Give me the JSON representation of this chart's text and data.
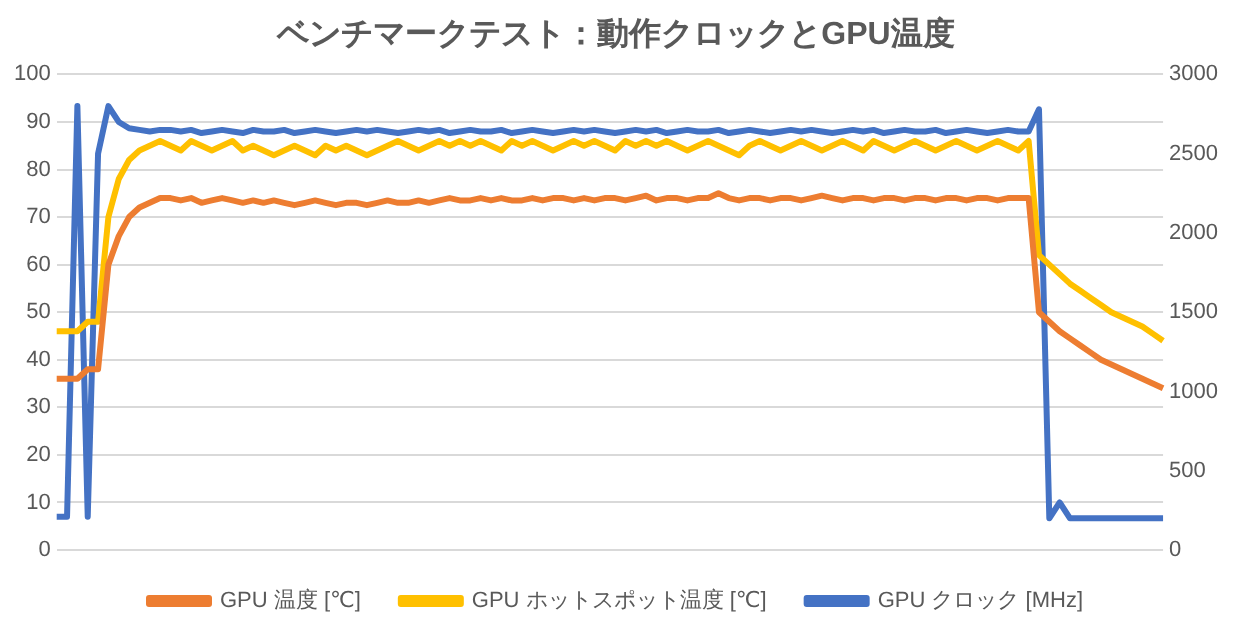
{
  "chart_data": {
    "type": "line",
    "title": "ベンチマークテスト：動作クロックとGPU温度",
    "categories": [
      null,
      null,
      null,
      null,
      null,
      null,
      null,
      null,
      null,
      null,
      null,
      null,
      null,
      null,
      null,
      null,
      null,
      null,
      null,
      null,
      null,
      null,
      null,
      null,
      null,
      null,
      null,
      null,
      null,
      null,
      null,
      null,
      null,
      null,
      null,
      null,
      null,
      null,
      null,
      null,
      null,
      null,
      null,
      null,
      null,
      null,
      null,
      null,
      null,
      null,
      null,
      null,
      null,
      null,
      null,
      null,
      null,
      null,
      null,
      null,
      null,
      null,
      null,
      null,
      null,
      null,
      null,
      null,
      null,
      null,
      null,
      null,
      null,
      null,
      null,
      null,
      null,
      null,
      null,
      null,
      null,
      null,
      null,
      null,
      null,
      null,
      null,
      null,
      null,
      null,
      null,
      null,
      null,
      null,
      null,
      null,
      null,
      null,
      null,
      null,
      null,
      null,
      null,
      null,
      null,
      null,
      null,
      null
    ],
    "ylim": [
      0,
      100
    ],
    "yticks": [
      0,
      10,
      20,
      30,
      40,
      50,
      60,
      70,
      80,
      90,
      100
    ],
    "y2lim": [
      0,
      3000
    ],
    "y2ticks": [
      0,
      500,
      1000,
      1500,
      2000,
      2500,
      3000
    ],
    "grid": "y",
    "legend": "bottom",
    "marker": "none",
    "line_style": "solid",
    "series": [
      {
        "name": "GPU 温度 [℃]",
        "color": "#ed7d31",
        "values": [
          36,
          36,
          36,
          38,
          38,
          60,
          66,
          70,
          72,
          73,
          74,
          74,
          73.5,
          74,
          73,
          73.5,
          74,
          73.5,
          73,
          73.5,
          73,
          73.5,
          73,
          72.5,
          73,
          73.5,
          73,
          72.5,
          73,
          73,
          72.5,
          73,
          73.5,
          73,
          73,
          73.5,
          73,
          73.5,
          74,
          73.5,
          73.5,
          74,
          73.5,
          74,
          73.5,
          73.5,
          74,
          73.5,
          74,
          74,
          73.5,
          74,
          73.5,
          74,
          74,
          73.5,
          74,
          74.5,
          73.5,
          74,
          74,
          73.5,
          74,
          74,
          75,
          74,
          73.5,
          74,
          74,
          73.5,
          74,
          74,
          73.5,
          74,
          74.5,
          74,
          73.5,
          74,
          74,
          73.5,
          74,
          74,
          73.5,
          74,
          74,
          73.5,
          74,
          74,
          73.5,
          74,
          74,
          73.5,
          74,
          74,
          74,
          50,
          48,
          46,
          44.5,
          43,
          41.5,
          40,
          39,
          38,
          37,
          36,
          35,
          34
        ]
      },
      {
        "name": "GPU ホットスポット温度 [℃]",
        "color": "#ffc000",
        "values": [
          46,
          46,
          46,
          48,
          48,
          70,
          78,
          82,
          84,
          85,
          86,
          85,
          84,
          86,
          85,
          84,
          85,
          86,
          84,
          85,
          84,
          83,
          84,
          85,
          84,
          83,
          85,
          84,
          85,
          84,
          83,
          84,
          85,
          86,
          85,
          84,
          85,
          86,
          85,
          86,
          85,
          86,
          85,
          84,
          86,
          85,
          86,
          85,
          84,
          85,
          86,
          85,
          86,
          85,
          84,
          86,
          85,
          86,
          85,
          86,
          85,
          84,
          85,
          86,
          85,
          84,
          83,
          85,
          86,
          85,
          84,
          85,
          86,
          85,
          84,
          85,
          86,
          85,
          84,
          86,
          85,
          84,
          85,
          86,
          85,
          84,
          85,
          86,
          85,
          84,
          85,
          86,
          85,
          84,
          86,
          62,
          60,
          58,
          56,
          54.5,
          53,
          51.5,
          50,
          49,
          48,
          47,
          45.5,
          44
        ]
      },
      {
        "name": "GPU クロック [MHz]",
        "color": "#4472c4",
        "axis": "y2",
        "values": [
          210,
          210,
          2800,
          210,
          2500,
          2800,
          2700,
          2660,
          2650,
          2640,
          2650,
          2650,
          2640,
          2650,
          2630,
          2640,
          2650,
          2640,
          2630,
          2650,
          2640,
          2640,
          2650,
          2630,
          2640,
          2650,
          2640,
          2630,
          2640,
          2650,
          2640,
          2650,
          2640,
          2630,
          2640,
          2650,
          2640,
          2650,
          2630,
          2640,
          2650,
          2640,
          2640,
          2650,
          2630,
          2640,
          2650,
          2640,
          2630,
          2640,
          2650,
          2640,
          2650,
          2640,
          2630,
          2640,
          2650,
          2640,
          2650,
          2630,
          2640,
          2650,
          2640,
          2640,
          2650,
          2630,
          2640,
          2650,
          2640,
          2630,
          2640,
          2650,
          2640,
          2650,
          2640,
          2630,
          2640,
          2650,
          2640,
          2650,
          2630,
          2640,
          2650,
          2640,
          2640,
          2650,
          2630,
          2640,
          2650,
          2640,
          2630,
          2640,
          2650,
          2640,
          2640,
          2780,
          200,
          300,
          200,
          200,
          200,
          200,
          200,
          200,
          200,
          200,
          200,
          200
        ]
      }
    ]
  }
}
